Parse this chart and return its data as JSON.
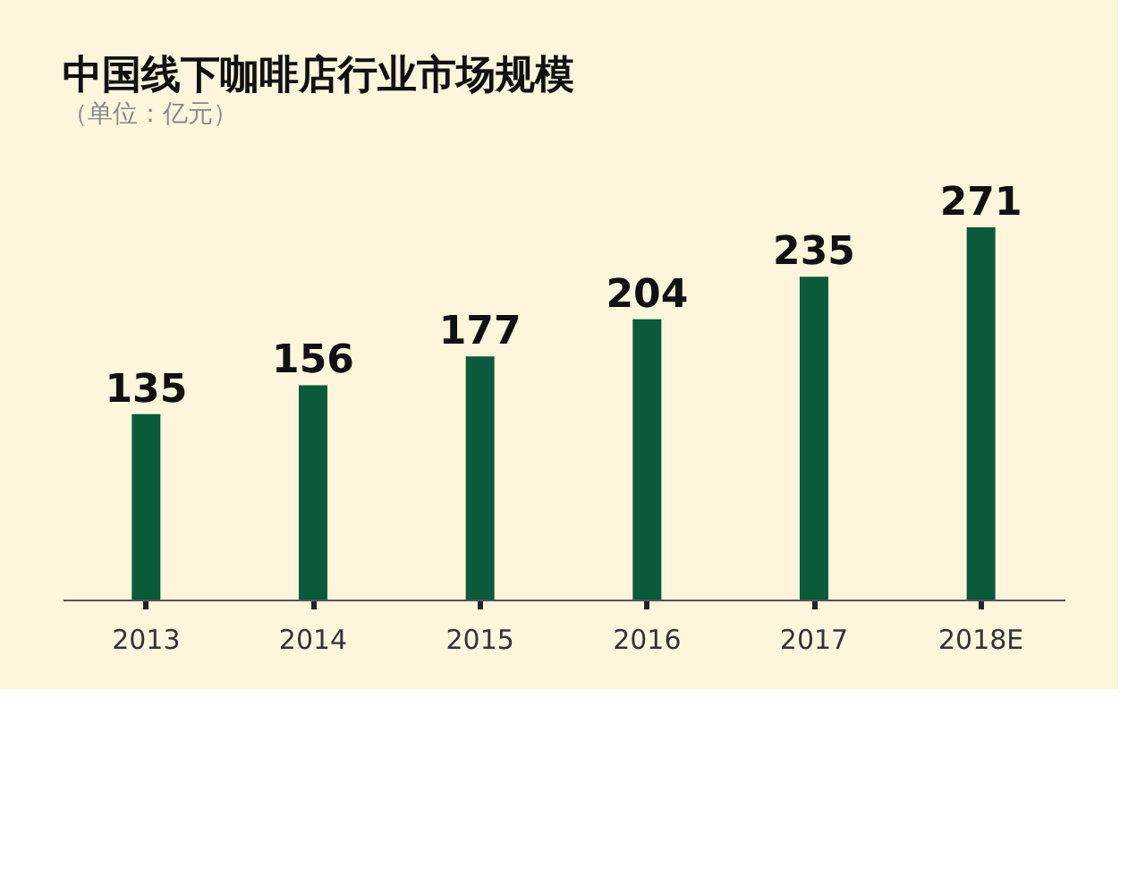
{
  "chart_data": {
    "type": "bar",
    "title": "中国线下咖啡店行业市场规模",
    "subtitle": "（单位：亿元）",
    "categories": [
      "2013",
      "2014",
      "2015",
      "2016",
      "2017",
      "2018E"
    ],
    "values": [
      135,
      156,
      177,
      204,
      235,
      271
    ],
    "color": "#0b5a3a",
    "data_labels": true,
    "grid": false
  }
}
